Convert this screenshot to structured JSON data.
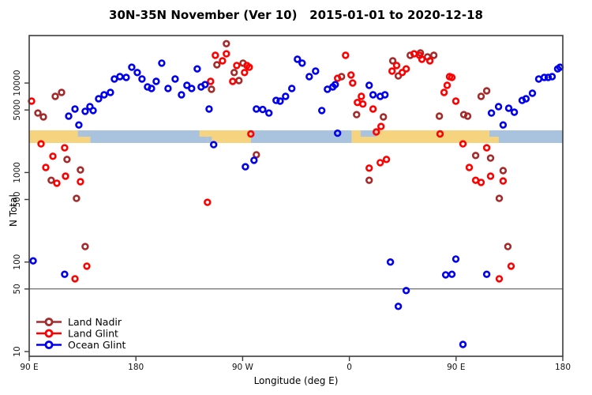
{
  "chart_data": {
    "type": "scatter",
    "title": "30N-35N November (Ver 10)   2015-01-01 to 2020-12-18",
    "xlabel": "Longitude (deg E)",
    "ylabel": "N Total",
    "x_axis_deg_range": [
      90,
      540
    ],
    "y_log_range": [
      10,
      30000
    ],
    "grid": false,
    "reference_line_y": 50,
    "frame_color": "#3c3c3c",
    "x_ticks": [
      {
        "lon": 90,
        "label": "90 E"
      },
      {
        "lon": 180,
        "label": "180"
      },
      {
        "lon": 270,
        "label": "90 W"
      },
      {
        "lon": 360,
        "label": "0"
      },
      {
        "lon": 450,
        "label": "90 E"
      },
      {
        "lon": 540,
        "label": "180"
      }
    ],
    "y_ticks": [
      {
        "value": 10000,
        "label": "10000"
      },
      {
        "value": 5000,
        "label": "5000"
      },
      {
        "value": 1000,
        "label": "1000"
      },
      {
        "value": 500,
        "label": "500"
      },
      {
        "value": 100,
        "label": "100"
      },
      {
        "value": 50,
        "label": "50"
      },
      {
        "value": 10,
        "label": "10"
      }
    ],
    "land_ocean_band": {
      "description": "latitude-strip map band",
      "center_value": 2700,
      "land_color": "#F6D37F",
      "ocean_color": "#A9C2DD",
      "segments": [
        {
          "from": 90,
          "to": 141.5,
          "type": "land"
        },
        {
          "from": 141.5,
          "to": 240.3,
          "type": "ocean"
        },
        {
          "from": 240.3,
          "to": 277,
          "type": "land"
        },
        {
          "from": 277,
          "to": 362,
          "type": "ocean"
        },
        {
          "from": 362,
          "to": 478,
          "type": "land"
        },
        {
          "from": 478,
          "to": 540,
          "type": "ocean"
        }
      ],
      "notches": [
        {
          "from": 131,
          "to": 141.5,
          "row": "top",
          "type": "ocean"
        },
        {
          "from": 233.5,
          "to": 240.3,
          "row": "top",
          "type": "land"
        },
        {
          "from": 240.3,
          "to": 244,
          "row": "bottom",
          "type": "ocean"
        },
        {
          "from": 369.5,
          "to": 383,
          "row": "top",
          "type": "ocean"
        },
        {
          "from": 478,
          "to": 486,
          "row": "bottom",
          "type": "land"
        }
      ]
    },
    "legend": {
      "position": "bottom-left"
    },
    "series": [
      {
        "name": "Land Nadir",
        "color": "#A52A2A",
        "points": [
          [
            97.3,
            4620
          ],
          [
            102,
            4180
          ],
          [
            112,
            7090
          ],
          [
            117.3,
            7850
          ],
          [
            108.6,
            820
          ],
          [
            121.9,
            1400
          ],
          [
            133.2,
            1070
          ],
          [
            129.9,
            515
          ],
          [
            137.2,
            149
          ],
          [
            256.3,
            27500
          ],
          [
            248.3,
            16000
          ],
          [
            243.7,
            8520
          ],
          [
            262.9,
            13100
          ],
          [
            266.9,
            10650
          ],
          [
            270.3,
            16700
          ],
          [
            281.6,
            1580
          ],
          [
            353.4,
            11800
          ],
          [
            366.1,
            4440
          ],
          [
            376.7,
            820
          ],
          [
            388.7,
            4180
          ],
          [
            396.6,
            17700
          ],
          [
            401.3,
            12000
          ],
          [
            411.3,
            20400
          ],
          [
            419.9,
            21700
          ],
          [
            425.9,
            19600
          ],
          [
            431.2,
            20400
          ],
          [
            435.9,
            4270
          ],
          [
            456.5,
            4440
          ],
          [
            459.8,
            4270
          ],
          [
            471.1,
            7090
          ],
          [
            475.8,
            8180
          ],
          [
            466.5,
            1550
          ],
          [
            479.1,
            1450
          ],
          [
            489.7,
            1050
          ],
          [
            486.4,
            515
          ],
          [
            493.7,
            149
          ]
        ]
      },
      {
        "name": "Land Glint",
        "color": "#FF0000",
        "points": [
          [
            92,
            6280
          ],
          [
            100,
            2090
          ],
          [
            119.9,
            1890
          ],
          [
            110,
            1520
          ],
          [
            104,
            1140
          ],
          [
            120.6,
            910
          ],
          [
            113.3,
            760
          ],
          [
            133.2,
            790
          ],
          [
            138.6,
            90
          ],
          [
            128.6,
            65
          ],
          [
            240.3,
            465
          ],
          [
            247,
            20400
          ],
          [
            256.3,
            21200
          ],
          [
            253,
            17700
          ],
          [
            243,
            10430
          ],
          [
            261.6,
            10430
          ],
          [
            265,
            15700
          ],
          [
            273.6,
            15700
          ],
          [
            275.6,
            15000
          ],
          [
            271.6,
            13100
          ],
          [
            276.9,
            2700
          ],
          [
            350.1,
            11300
          ],
          [
            356.8,
            20400
          ],
          [
            361.4,
            12300
          ],
          [
            362.8,
            10000
          ],
          [
            370.1,
            7090
          ],
          [
            366.8,
            6060
          ],
          [
            371.4,
            5820
          ],
          [
            380,
            5120
          ],
          [
            382.7,
            2840
          ],
          [
            386.7,
            3270
          ],
          [
            399.9,
            15700
          ],
          [
            396,
            13600
          ],
          [
            404.6,
            13100
          ],
          [
            407.9,
            14400
          ],
          [
            414.6,
            21200
          ],
          [
            419.2,
            20400
          ],
          [
            421.2,
            18450
          ],
          [
            427.9,
            17700
          ],
          [
            444.5,
            11800
          ],
          [
            442.5,
            9420
          ],
          [
            436.5,
            2700
          ],
          [
            446.5,
            11550
          ],
          [
            439.9,
            7850
          ],
          [
            449.8,
            6280
          ],
          [
            455.8,
            2090
          ],
          [
            475.8,
            1890
          ],
          [
            461.1,
            1140
          ],
          [
            466.5,
            820
          ],
          [
            471.1,
            775
          ],
          [
            479.1,
            910
          ],
          [
            489.7,
            805
          ],
          [
            496.4,
            90
          ],
          [
            486.4,
            65
          ],
          [
            376.7,
            1120
          ],
          [
            386,
            1290
          ],
          [
            391.3,
            1400
          ]
        ]
      },
      {
        "name": "Ocean Glint",
        "color": "#0000EE",
        "points": [
          [
            93.3,
            103
          ],
          [
            119.9,
            73
          ],
          [
            123.3,
            4270
          ],
          [
            128.6,
            5120
          ],
          [
            131.9,
            3400
          ],
          [
            137.2,
            4830
          ],
          [
            141.2,
            5450
          ],
          [
            143.9,
            4930
          ],
          [
            148.5,
            6670
          ],
          [
            153.2,
            7380
          ],
          [
            158.5,
            7850
          ],
          [
            161.8,
            11100
          ],
          [
            166.5,
            11800
          ],
          [
            171.8,
            11550
          ],
          [
            176.5,
            15000
          ],
          [
            181.1,
            13100
          ],
          [
            185.1,
            11100
          ],
          [
            189.8,
            9050
          ],
          [
            193.1,
            8700
          ],
          [
            197.1,
            10430
          ],
          [
            201.8,
            16700
          ],
          [
            207.1,
            8700
          ],
          [
            213.1,
            11100
          ],
          [
            218.4,
            7380
          ],
          [
            223,
            9420
          ],
          [
            227,
            8700
          ],
          [
            231.7,
            14400
          ],
          [
            235,
            9050
          ],
          [
            238.3,
            9600
          ],
          [
            241.7,
            5120
          ],
          [
            245.6,
            2050
          ],
          [
            272.3,
            1160
          ],
          [
            279.6,
            1370
          ],
          [
            281.6,
            5120
          ],
          [
            286.9,
            5060
          ],
          [
            292.2,
            4620
          ],
          [
            298.2,
            6400
          ],
          [
            301.6,
            6280
          ],
          [
            306.2,
            7090
          ],
          [
            311.5,
            8700
          ],
          [
            316.2,
            18450
          ],
          [
            320.2,
            16700
          ],
          [
            326.2,
            11800
          ],
          [
            331.5,
            13600
          ],
          [
            336.8,
            4930
          ],
          [
            341.5,
            8520
          ],
          [
            346.1,
            9050
          ],
          [
            348.1,
            9600
          ],
          [
            350.1,
            2750
          ],
          [
            376.7,
            9420
          ],
          [
            380,
            7380
          ],
          [
            386,
            7090
          ],
          [
            390,
            7380
          ],
          [
            394.6,
            100
          ],
          [
            407.9,
            48
          ],
          [
            401.3,
            32
          ],
          [
            441.2,
            72
          ],
          [
            446.5,
            73
          ],
          [
            449.8,
            108
          ],
          [
            455.8,
            12
          ],
          [
            475.8,
            73
          ],
          [
            479.8,
            4620
          ],
          [
            485.8,
            5450
          ],
          [
            489.7,
            3400
          ],
          [
            494.4,
            5230
          ],
          [
            499.1,
            4720
          ],
          [
            505.7,
            6400
          ],
          [
            509,
            6670
          ],
          [
            514.4,
            7690
          ],
          [
            519.7,
            11100
          ],
          [
            524.4,
            11550
          ],
          [
            527.7,
            11550
          ],
          [
            531,
            11800
          ],
          [
            535.7,
            14400
          ],
          [
            537.7,
            15000
          ]
        ]
      }
    ]
  }
}
